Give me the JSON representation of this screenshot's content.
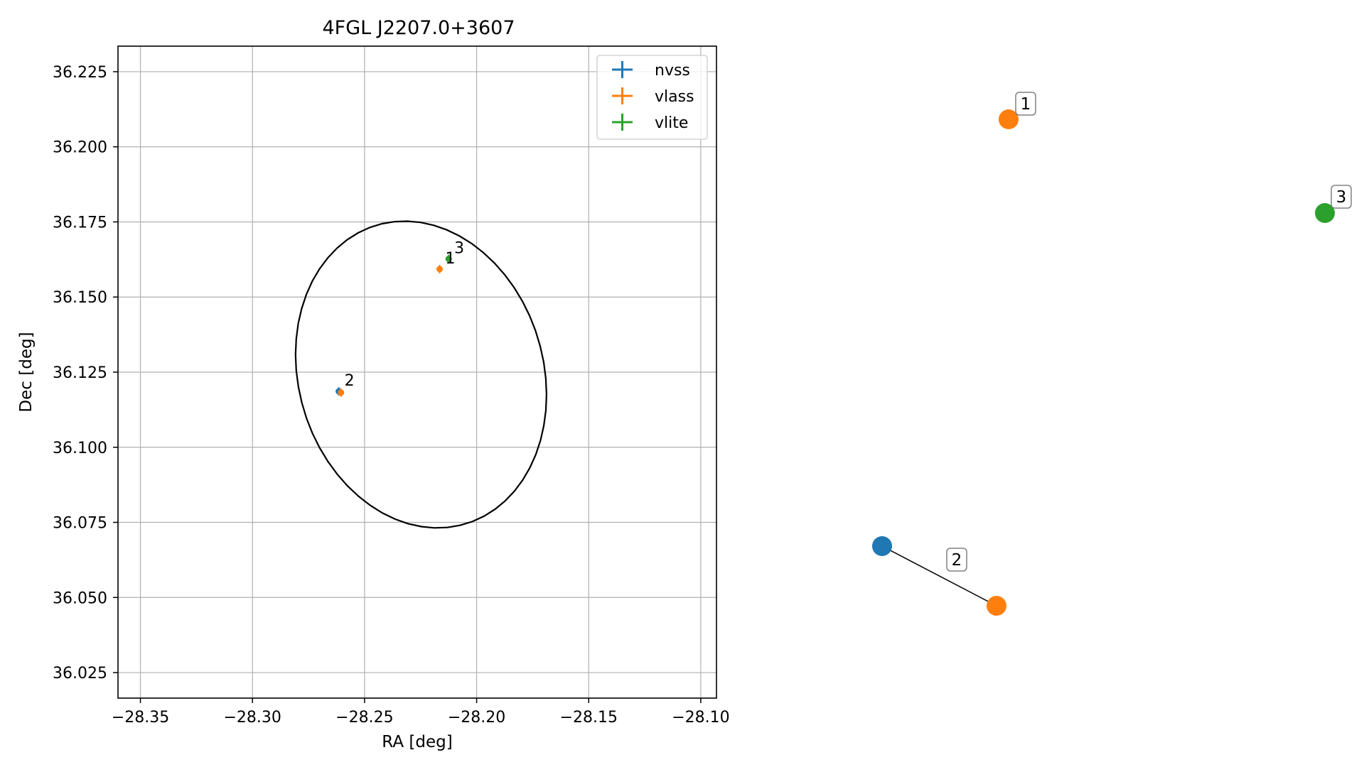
{
  "colors": {
    "nvss": "#1f77b4",
    "vlass": "#ff7f0e",
    "vlite": "#2ca02c",
    "grid": "#b0b0b0",
    "ellipse": "#000000",
    "axes": "#000000"
  },
  "chart_data": [
    {
      "type": "scatter",
      "title": "4FGL J2207.0+3607",
      "xlabel": "RA [deg]",
      "ylabel": "Dec [deg]",
      "xlim": [
        -28.36,
        -28.093
      ],
      "ylim": [
        36.0165,
        36.2335
      ],
      "xticks": [
        -28.35,
        -28.3,
        -28.25,
        -28.2,
        -28.15,
        -28.1
      ],
      "xtick_labels": [
        "−28.35",
        "−28.30",
        "−28.25",
        "−28.20",
        "−28.15",
        "−28.10"
      ],
      "yticks": [
        36.025,
        36.05,
        36.075,
        36.1,
        36.125,
        36.15,
        36.175,
        36.2,
        36.225
      ],
      "ytick_labels": [
        "36.025",
        "36.050",
        "36.075",
        "36.100",
        "36.125",
        "36.150",
        "36.175",
        "36.200",
        "36.225"
      ],
      "grid": true,
      "legend_position": "top-right",
      "series": [
        {
          "name": "nvss",
          "points": [
            {
              "x": -28.2615,
              "y": 36.1186
            }
          ]
        },
        {
          "name": "vlass",
          "points": [
            {
              "x": -28.2165,
              "y": 36.1593
            },
            {
              "x": -28.2605,
              "y": 36.1182
            }
          ]
        },
        {
          "name": "vlite",
          "points": [
            {
              "x": -28.2125,
              "y": 36.1627
            }
          ]
        }
      ],
      "annotations": [
        {
          "text": "1",
          "x": -28.2165,
          "y": 36.1593
        },
        {
          "text": "2",
          "x": -28.2615,
          "y": 36.1186
        },
        {
          "text": "3",
          "x": -28.2125,
          "y": 36.1627
        }
      ],
      "ellipse": {
        "center_x": -28.2248,
        "center_y": 36.1242,
        "semi_major_deg": 0.0577,
        "semi_minor_deg": 0.0491,
        "angle_deg": -27.5
      }
    },
    {
      "type": "network",
      "nodes": [
        {
          "label": "1",
          "series": "vlass"
        },
        {
          "label": "3",
          "series": "vlite"
        },
        {
          "label": "",
          "series": "nvss"
        },
        {
          "label": "",
          "series": "vlass"
        }
      ],
      "edges": [
        {
          "label": "2",
          "from": 2,
          "to": 3
        }
      ]
    }
  ]
}
